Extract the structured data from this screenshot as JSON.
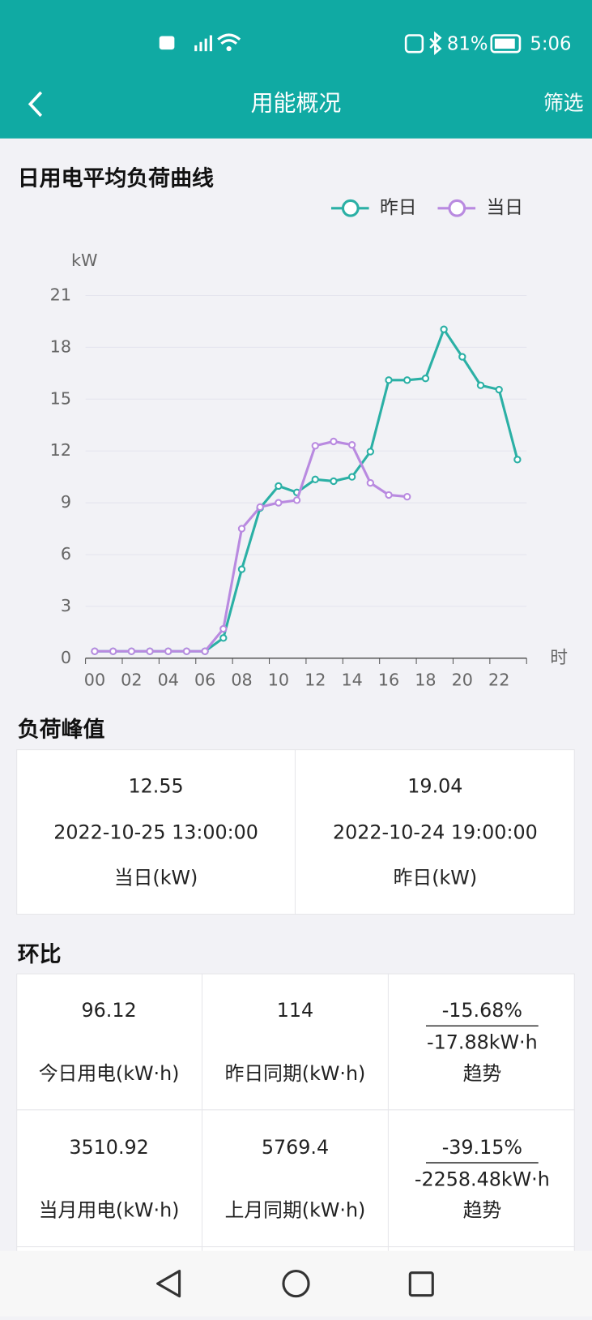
{
  "status_bar": {
    "battery": "81%",
    "time": "5:06"
  },
  "header": {
    "title": "用能概况",
    "action": "筛选"
  },
  "chart_data": {
    "type": "line",
    "title": "日用电平均负荷曲线",
    "y_unit": "kW",
    "x_unit": "时",
    "categories": [
      "00",
      null,
      "02",
      null,
      "04",
      null,
      "06",
      null,
      "08",
      null,
      "10",
      null,
      "12",
      null,
      "14",
      null,
      "16",
      null,
      "18",
      null,
      "20",
      null,
      "22",
      null
    ],
    "series": [
      {
        "name": "昨日",
        "color": "#2bb0a5",
        "values": [
          0.4,
          0.4,
          0.4,
          0.4,
          0.4,
          0.4,
          0.4,
          1.17,
          5.15,
          8.7,
          9.97,
          9.6,
          10.35,
          10.25,
          10.5,
          11.96,
          16.1,
          16.1,
          16.2,
          19.04,
          17.45,
          15.8,
          15.55,
          11.5
        ]
      },
      {
        "name": "当日",
        "color": "#b98ae0",
        "values": [
          0.4,
          0.4,
          0.4,
          0.4,
          0.4,
          0.4,
          0.4,
          1.7,
          7.5,
          8.75,
          9.0,
          9.15,
          12.3,
          12.55,
          12.35,
          10.15,
          9.45,
          9.35,
          null,
          null,
          null,
          null,
          null,
          null
        ]
      }
    ],
    "ylim": [
      0,
      21
    ],
    "yticks": [
      0,
      3,
      6,
      9,
      12,
      15,
      18,
      21
    ],
    "grid": true,
    "legend": "top-right"
  },
  "peak": {
    "title": "负荷峰值",
    "cells": [
      {
        "value": 12.55,
        "time": "2022-10-25 13:00:00",
        "label": "当日(kW)"
      },
      {
        "value": 19.04,
        "time": "2022-10-24 19:00:00",
        "label": "昨日(kW)"
      }
    ]
  },
  "ratio": {
    "title": "环比",
    "rows": [
      {
        "current": {
          "value": 96.12,
          "label": "今日用电(kW·h)"
        },
        "previous": {
          "value": 114,
          "label": "昨日同期(kW·h)"
        },
        "trend": {
          "percent": "-15.68%",
          "amount": "-17.88kW·h",
          "label": "趋势"
        }
      },
      {
        "current": {
          "value": 3510.92,
          "label": "当月用电(kW·h)"
        },
        "previous": {
          "value": 5769.4,
          "label": "上月同期(kW·h)"
        },
        "trend": {
          "percent": "-39.15%",
          "amount": "-2258.48kW·h",
          "label": "趋势"
        }
      }
    ]
  }
}
